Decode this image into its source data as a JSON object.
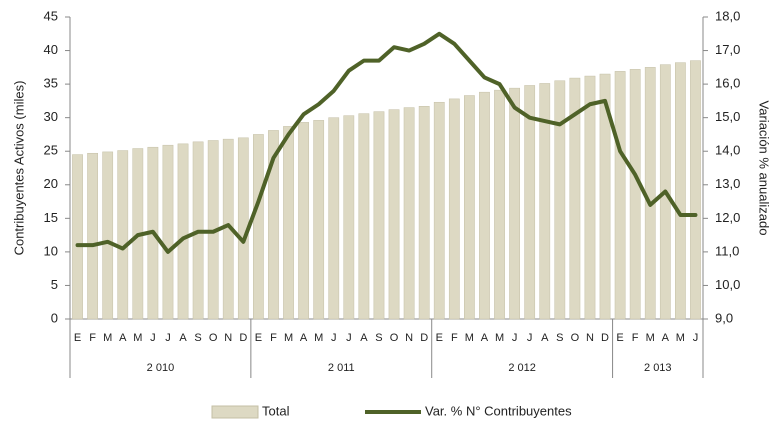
{
  "chart_data": {
    "type": "bar_line",
    "categories": [
      "E",
      "F",
      "M",
      "A",
      "M",
      "J",
      "J",
      "A",
      "S",
      "O",
      "N",
      "D",
      "E",
      "F",
      "M",
      "A",
      "M",
      "J",
      "J",
      "A",
      "S",
      "O",
      "N",
      "D",
      "E",
      "F",
      "M",
      "A",
      "M",
      "J",
      "J",
      "A",
      "S",
      "O",
      "N",
      "D",
      "E",
      "F",
      "M",
      "A",
      "M",
      "J"
    ],
    "groups": [
      {
        "label": "2 010",
        "count": 12
      },
      {
        "label": "2 011",
        "count": 12
      },
      {
        "label": "2 012",
        "count": 12
      },
      {
        "label": "2 013",
        "count": 6
      }
    ],
    "ylabel": "Contribuyentes Activos (miles)",
    "y2label": "Variación % anualizado",
    "ylim": [
      0,
      45
    ],
    "yticks": [
      0,
      5,
      10,
      15,
      20,
      25,
      30,
      35,
      40,
      45
    ],
    "y2lim": [
      9,
      18
    ],
    "y2ticks": [
      {
        "value": 9,
        "label": "9,0"
      },
      {
        "value": 10,
        "label": "10,0"
      },
      {
        "value": 11,
        "label": "11,0"
      },
      {
        "value": 12,
        "label": "12,0"
      },
      {
        "value": 13,
        "label": "13,0"
      },
      {
        "value": 14,
        "label": "14,0"
      },
      {
        "value": 15,
        "label": "15,0"
      },
      {
        "value": 16,
        "label": "16,0"
      },
      {
        "value": 17,
        "label": "17,0"
      },
      {
        "value": 18,
        "label": "18,0"
      }
    ],
    "series": [
      {
        "name": "Total",
        "type": "bar",
        "color": "#ddd9c3",
        "values": [
          24.5,
          24.7,
          24.9,
          25.1,
          25.4,
          25.6,
          25.9,
          26.1,
          26.4,
          26.6,
          26.8,
          27.0,
          27.5,
          28.1,
          28.7,
          29.3,
          29.6,
          30.0,
          30.3,
          30.6,
          30.9,
          31.2,
          31.5,
          31.7,
          32.3,
          32.8,
          33.3,
          33.8,
          34.1,
          34.4,
          34.8,
          35.1,
          35.5,
          35.9,
          36.2,
          36.5,
          36.9,
          37.2,
          37.5,
          37.9,
          38.2,
          38.5
        ]
      },
      {
        "name": "Var. % N° Contribuyentes",
        "type": "line",
        "axis": "y2",
        "color": "#4f6228",
        "values": [
          11.2,
          11.2,
          11.3,
          11.1,
          11.5,
          11.6,
          11.0,
          11.4,
          11.6,
          11.6,
          11.8,
          11.3,
          12.5,
          13.8,
          14.5,
          15.1,
          15.4,
          15.8,
          16.4,
          16.7,
          16.7,
          17.1,
          17.0,
          17.2,
          17.5,
          17.2,
          16.7,
          16.2,
          16.0,
          15.3,
          15.0,
          14.9,
          14.8,
          15.1,
          15.4,
          15.5,
          14.0,
          13.3,
          12.4,
          12.8,
          12.1,
          12.1
        ]
      }
    ]
  }
}
